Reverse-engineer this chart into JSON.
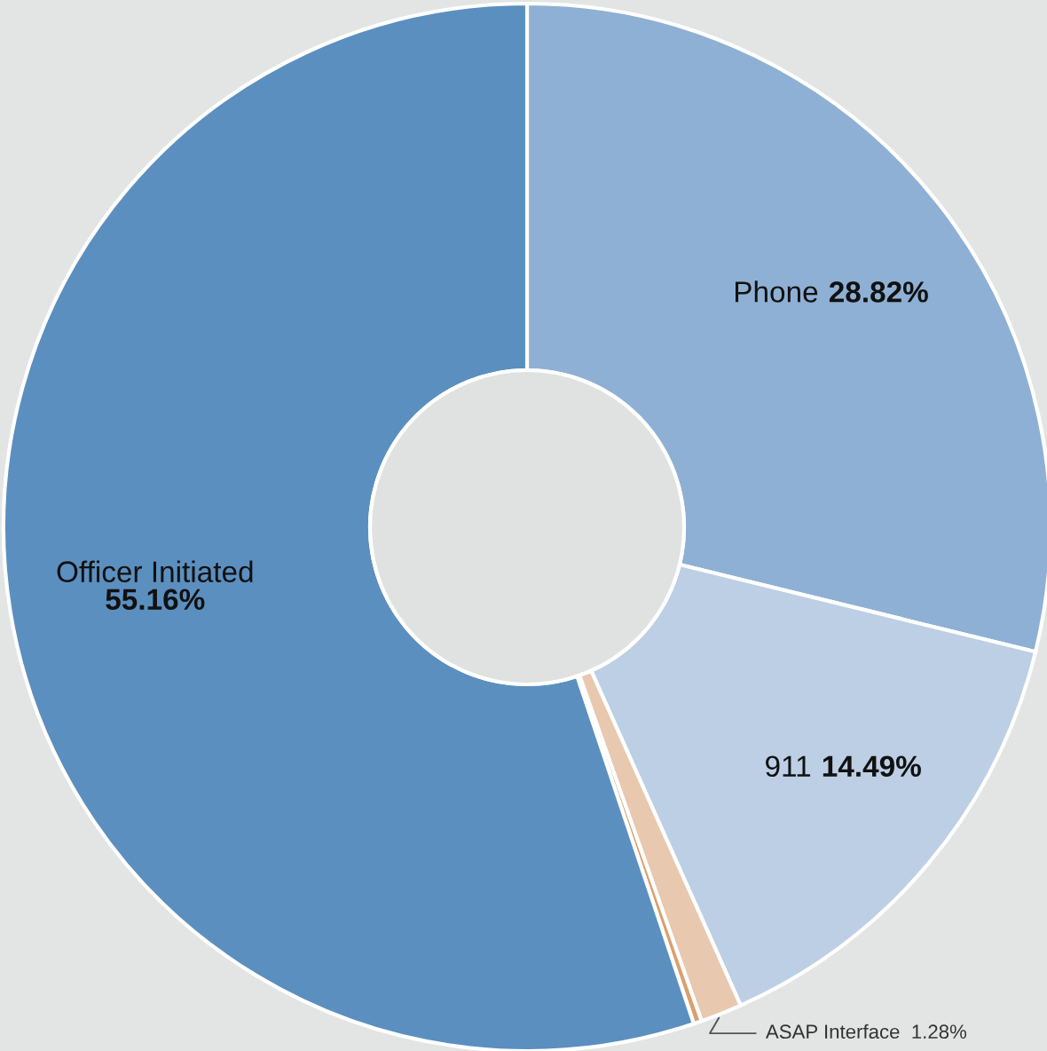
{
  "chart_data": {
    "type": "donut",
    "categories": [
      "Phone",
      "911",
      "ASAP Interface",
      null,
      "Officer Initiated"
    ],
    "values": [
      28.82,
      14.49,
      1.28,
      0.25,
      55.16
    ],
    "colors": [
      "#8eb0d4",
      "#bccfe4",
      "#e8c8ae",
      "#d9a070",
      "#5b8fbf"
    ],
    "value_labels": [
      "28.82%",
      "14.49%",
      "1.28%",
      null,
      "55.16%"
    ],
    "legend": false
  }
}
